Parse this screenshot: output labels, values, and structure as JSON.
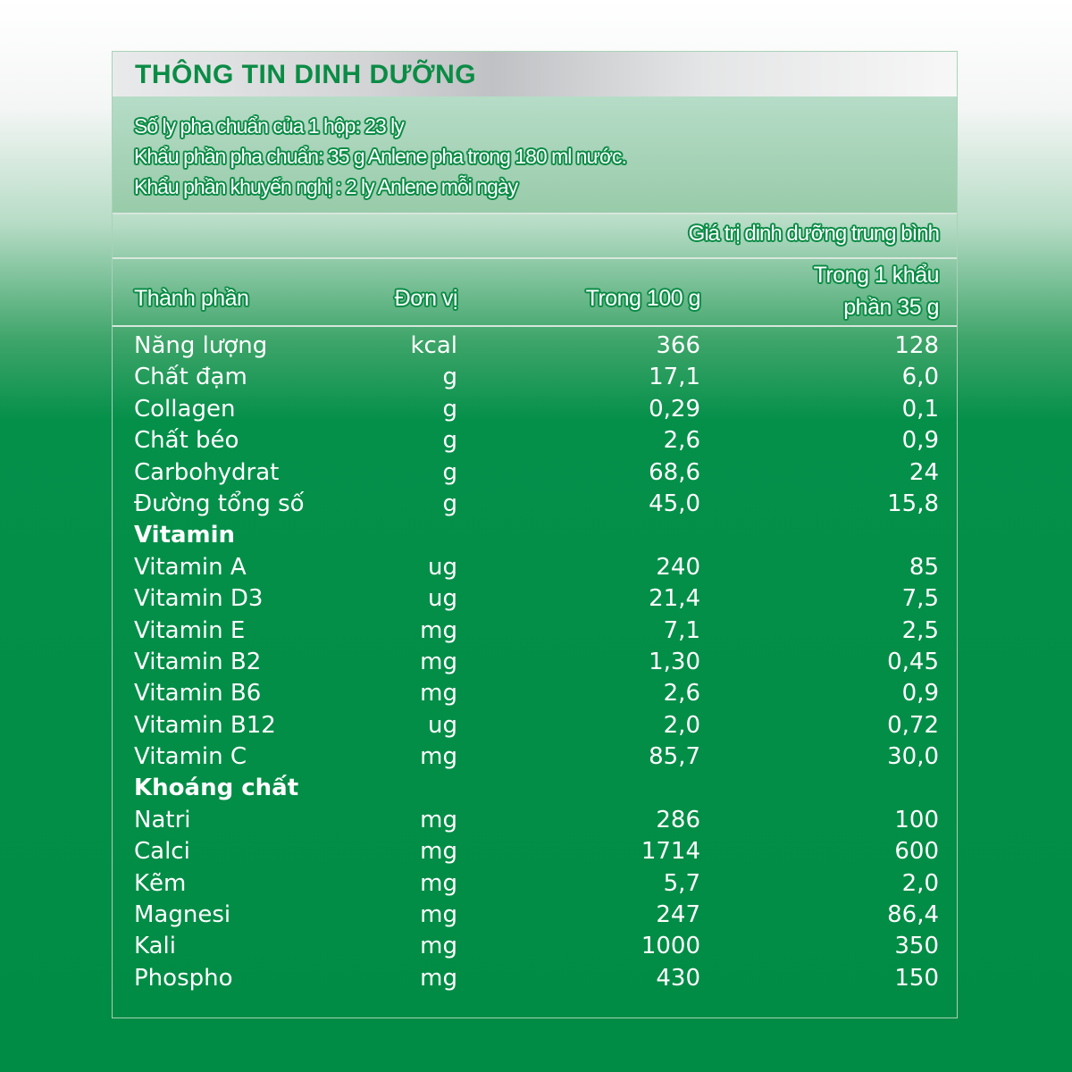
{
  "title": "THÔNG TIN DINH DƯỠNG",
  "info": [
    "Số ly pha chuẩn của 1 hộp: 23 ly",
    "Khẩu phần pha chuẩn: 35 g Anlene pha trong 180 ml nước.",
    "Khẩu phần khuyến nghị : 2 ly Anlene mỗi ngày"
  ],
  "subheader": "Giá trị dinh dưỡng trung bình",
  "columns": {
    "name": "Thành phần",
    "unit": "Đơn vị",
    "per100": "Trong 100 g",
    "per_serving_1": "Trong 1 khẩu",
    "per_serving_2": "phần 35 g"
  },
  "rows": [
    {
      "name": "Năng lượng",
      "unit": "kcal",
      "per100": "366",
      "serving": "128"
    },
    {
      "name": "Chất đạm",
      "unit": "g",
      "per100": "17,1",
      "serving": "6,0"
    },
    {
      "name": "Collagen",
      "unit": "g",
      "per100": "0,29",
      "serving": "0,1"
    },
    {
      "name": "Chất béo",
      "unit": "g",
      "per100": "2,6",
      "serving": "0,9"
    },
    {
      "name": "Carbohydrat",
      "unit": "g",
      "per100": "68,6",
      "serving": "24"
    },
    {
      "name": "Đường tổng số",
      "unit": "g",
      "per100": "45,0",
      "serving": "15,8"
    },
    {
      "name": "Vitamin",
      "section": true
    },
    {
      "name": "Vitamin A",
      "unit": "ug",
      "per100": "240",
      "serving": "85"
    },
    {
      "name": "Vitamin D3",
      "unit": "ug",
      "per100": "21,4",
      "serving": "7,5"
    },
    {
      "name": "Vitamin E",
      "unit": "mg",
      "per100": "7,1",
      "serving": "2,5"
    },
    {
      "name": "Vitamin B2",
      "unit": "mg",
      "per100": "1,30",
      "serving": "0,45"
    },
    {
      "name": "Vitamin B6",
      "unit": "mg",
      "per100": "2,6",
      "serving": "0,9"
    },
    {
      "name": "Vitamin B12",
      "unit": "ug",
      "per100": "2,0",
      "serving": "0,72"
    },
    {
      "name": "Vitamin C",
      "unit": "mg",
      "per100": "85,7",
      "serving": "30,0"
    },
    {
      "name": "Khoáng chất",
      "section": true
    },
    {
      "name": "Natri",
      "unit": "mg",
      "per100": "286",
      "serving": "100"
    },
    {
      "name": "Calci",
      "unit": "mg",
      "per100": "1714",
      "serving": "600"
    },
    {
      "name": "Kẽm",
      "unit": "mg",
      "per100": "5,7",
      "serving": "2,0"
    },
    {
      "name": "Magnesi",
      "unit": "mg",
      "per100": "247",
      "serving": "86,4"
    },
    {
      "name": "Kali",
      "unit": "mg",
      "per100": "1000",
      "serving": "350"
    },
    {
      "name": "Phospho",
      "unit": "mg",
      "per100": "430",
      "serving": "150"
    }
  ]
}
